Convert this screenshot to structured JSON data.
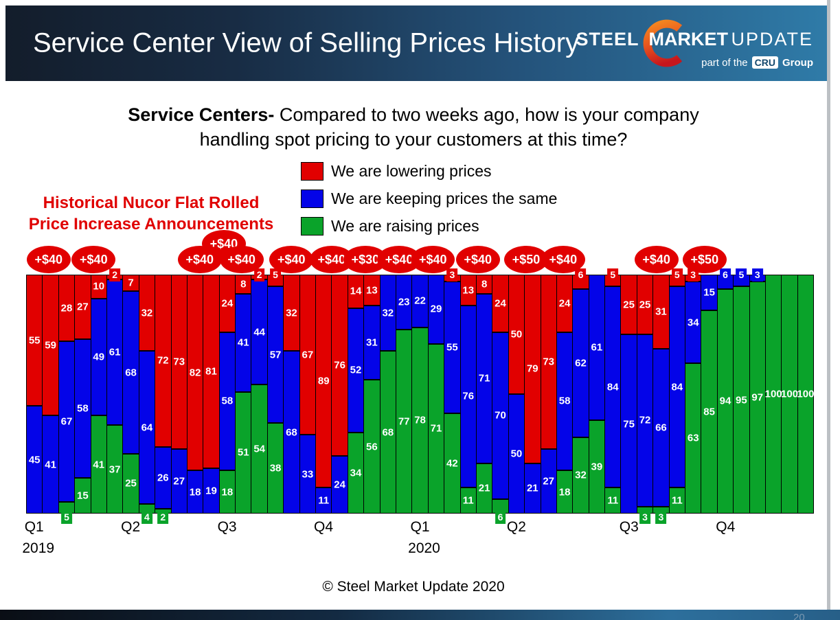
{
  "header": {
    "title": "Service Center View of Selling Prices History",
    "logo": {
      "brand_bold": "STEEL",
      "brand_mid": "MARKET",
      "brand_light": "UPDATE",
      "tagline_prefix": "part of the",
      "tagline_badge": "CRU",
      "tagline_suffix": "Group"
    }
  },
  "question": {
    "bold": "Service Centers-",
    "rest": " Compared to two weeks ago, how is your company handling spot pricing to your customers at this time?"
  },
  "nucor_note": {
    "line1": "Historical Nucor Flat Rolled",
    "line2": "Price Increase Announcements"
  },
  "legend": {
    "items": [
      {
        "label": "We are lowering prices",
        "color": "#e10000"
      },
      {
        "label": "We are keeping prices the same",
        "color": "#0404e8"
      },
      {
        "label": "We are raising prices",
        "color": "#0aa32a"
      }
    ]
  },
  "footer": {
    "copyright": "© Steel Market Update 2020",
    "slide_number": "20"
  },
  "chart_data": {
    "type": "bar",
    "variant": "stacked-100-percent",
    "unit": "percent of respondents",
    "ylim": [
      0,
      100
    ],
    "grid": false,
    "legend_position": "top-center",
    "bar_count": 49,
    "label_inside_min_value": 7,
    "annotation_color": "#e10000",
    "series": [
      {
        "name": "We are lowering prices",
        "color": "#e10000",
        "values": [
          55,
          59,
          28,
          27,
          10,
          2,
          7,
          32,
          72,
          73,
          82,
          81,
          24,
          8,
          2,
          5,
          32,
          67,
          89,
          76,
          14,
          13,
          0,
          0,
          0,
          0,
          3,
          13,
          8,
          24,
          50,
          79,
          73,
          24,
          6,
          0,
          5,
          25,
          25,
          31,
          5,
          3,
          0,
          0,
          0,
          0,
          0,
          0,
          0
        ]
      },
      {
        "name": "We are keeping prices the same",
        "color": "#0404e8",
        "values": [
          45,
          41,
          67,
          58,
          49,
          61,
          68,
          64,
          26,
          27,
          18,
          19,
          58,
          41,
          44,
          57,
          68,
          33,
          11,
          24,
          52,
          31,
          32,
          23,
          22,
          29,
          55,
          76,
          71,
          70,
          50,
          21,
          27,
          58,
          62,
          61,
          84,
          75,
          72,
          66,
          84,
          34,
          15,
          6,
          5,
          3,
          0,
          0,
          0
        ]
      },
      {
        "name": "We are raising prices",
        "color": "#0aa32a",
        "values": [
          0,
          0,
          5,
          15,
          41,
          37,
          25,
          4,
          2,
          0,
          0,
          0,
          18,
          51,
          54,
          38,
          0,
          0,
          0,
          0,
          34,
          56,
          68,
          77,
          78,
          71,
          42,
          11,
          21,
          6,
          0,
          0,
          0,
          18,
          32,
          39,
          11,
          0,
          3,
          3,
          11,
          63,
          85,
          94,
          95,
          97,
          100,
          100,
          100
        ]
      }
    ],
    "x_axis": {
      "quarters": [
        {
          "label": "Q1",
          "year": "2019",
          "start_bar": 1
        },
        {
          "label": "Q2",
          "start_bar": 7
        },
        {
          "label": "Q3",
          "start_bar": 13
        },
        {
          "label": "Q4",
          "start_bar": 19
        },
        {
          "label": "Q1",
          "year": "2020",
          "start_bar": 25
        },
        {
          "label": "Q2",
          "start_bar": 31
        },
        {
          "label": "Q3",
          "start_bar": 38
        },
        {
          "label": "Q4",
          "start_bar": 44
        }
      ]
    },
    "annotations": [
      {
        "label": "+$40",
        "bar": 1.9
      },
      {
        "label": "+$40",
        "bar": 4.7
      },
      {
        "label": "+$40",
        "bar": 11.3
      },
      {
        "label": "+$40",
        "bar": 12.8,
        "raised": true
      },
      {
        "label": "+$40",
        "bar": 13.9
      },
      {
        "label": "+$40",
        "bar": 17.0
      },
      {
        "label": "+$40",
        "bar": 19.5
      },
      {
        "label": "+$30",
        "bar": 21.6
      },
      {
        "label": "+$40",
        "bar": 23.7
      },
      {
        "label": "+$40",
        "bar": 25.8
      },
      {
        "label": "+$40",
        "bar": 28.6
      },
      {
        "label": "+$50",
        "bar": 31.6
      },
      {
        "label": "+$40",
        "bar": 33.9
      },
      {
        "label": "+$40",
        "bar": 39.7
      },
      {
        "label": "+$50",
        "bar": 42.7
      }
    ]
  }
}
